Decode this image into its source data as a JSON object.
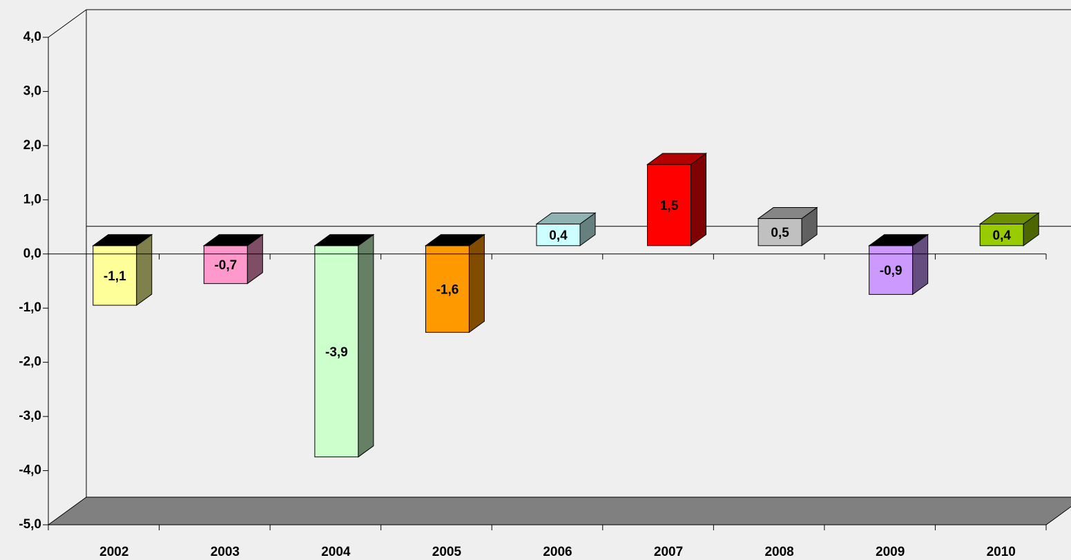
{
  "chart_data": {
    "type": "bar3d",
    "categories": [
      "2002",
      "2003",
      "2004",
      "2005",
      "2006",
      "2007",
      "2008",
      "2009",
      "2010"
    ],
    "values": [
      -1.1,
      -0.7,
      -3.9,
      -1.6,
      0.4,
      1.5,
      0.5,
      -0.9,
      0.4
    ],
    "value_labels": [
      "-1,1",
      "-0,7",
      "-3,9",
      "-1,6",
      "0,4",
      "1,5",
      "0,5",
      "-0,9",
      "0,4"
    ],
    "colors": [
      "#ffff99",
      "#ff99cc",
      "#ccffcc",
      "#ff9900",
      "#ccffff",
      "#ff0000",
      "#c0c0c0",
      "#cc99ff",
      "#99cc00"
    ],
    "ylim": [
      -5,
      4
    ],
    "yticks": [
      {
        "value": -5,
        "label": "-5,0"
      },
      {
        "value": -4,
        "label": "-4,0"
      },
      {
        "value": -3,
        "label": "-3,0"
      },
      {
        "value": -2,
        "label": "-2,0"
      },
      {
        "value": -1,
        "label": "-1,0"
      },
      {
        "value": 0,
        "label": "0,0"
      },
      {
        "value": 1,
        "label": "1,0"
      },
      {
        "value": 2,
        "label": "2,0"
      },
      {
        "value": 3,
        "label": "3,0"
      },
      {
        "value": 4,
        "label": "4,0"
      }
    ],
    "grid": false
  }
}
